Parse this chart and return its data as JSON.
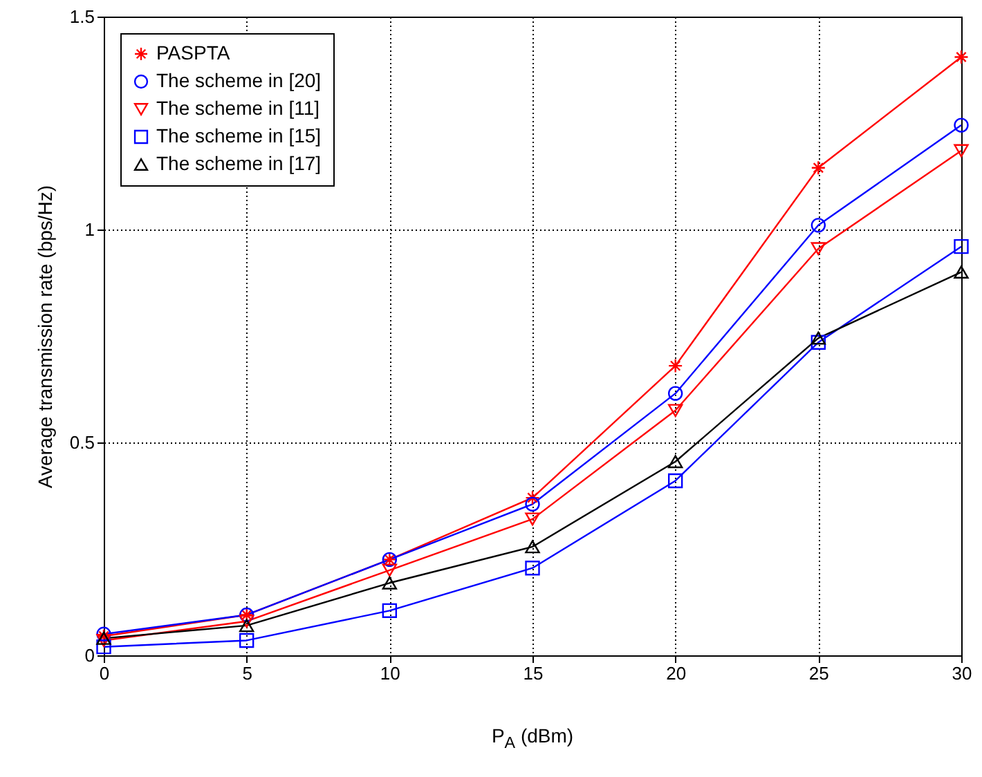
{
  "chart_data": {
    "type": "line",
    "xlabel": "P$_{A}$ (dBm)",
    "ylabel": "Average transmission rate (bps/Hz)",
    "x": [
      0,
      5,
      10,
      15,
      20,
      25,
      30
    ],
    "series": [
      {
        "name": "PASPTA",
        "color": "#ff0000",
        "marker": "cross",
        "values": [
          0.045,
          0.095,
          0.225,
          0.37,
          0.68,
          1.145,
          1.405
        ]
      },
      {
        "name": "The scheme in [20]",
        "color": "#0000ff",
        "marker": "circle",
        "values": [
          0.05,
          0.095,
          0.225,
          0.355,
          0.615,
          1.01,
          1.245
        ]
      },
      {
        "name": "The scheme in [11]",
        "color": "#ff0000",
        "marker": "triangle-down",
        "values": [
          0.035,
          0.08,
          0.2,
          0.32,
          0.575,
          0.955,
          1.185
        ]
      },
      {
        "name": "The scheme in [15]",
        "color": "#0000ff",
        "marker": "square",
        "values": [
          0.02,
          0.035,
          0.105,
          0.205,
          0.41,
          0.735,
          0.96
        ]
      },
      {
        "name": "The scheme in [17]",
        "color": "#000000",
        "marker": "triangle",
        "values": [
          0.04,
          0.07,
          0.17,
          0.255,
          0.455,
          0.745,
          0.9
        ]
      }
    ],
    "xlim": [
      0,
      30
    ],
    "xticks": [
      0,
      5,
      10,
      15,
      20,
      25,
      30
    ],
    "ylim": [
      0,
      1.5
    ],
    "yticks": [
      0,
      0.5,
      1,
      1.5
    ],
    "grid": true,
    "legend": "top left",
    "line_style": "solid"
  }
}
